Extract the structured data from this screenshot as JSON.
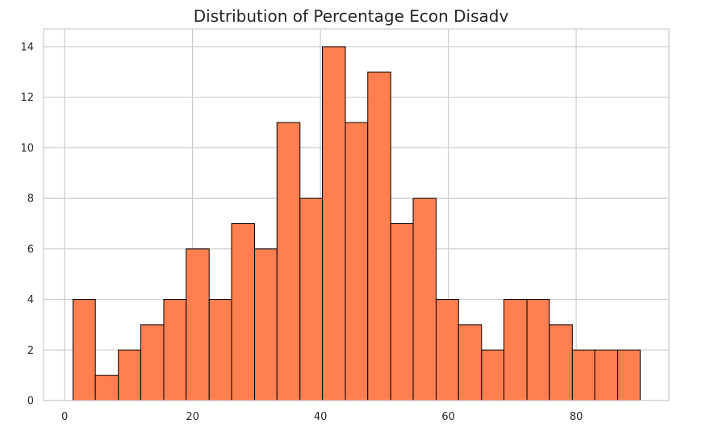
{
  "chart_data": {
    "type": "bar",
    "title": "Distribution of Percentage Econ Disadv",
    "xlabel": "",
    "ylabel": "",
    "xlim": [
      -3.3,
      94.5
    ],
    "ylim": [
      0,
      14.7
    ],
    "grid": true,
    "bar_color": "#ff7f50",
    "edge_color": "#000000",
    "bins": [
      {
        "x0": 1.3,
        "x1": 4.8,
        "count": 4
      },
      {
        "x0": 4.8,
        "x1": 8.4,
        "count": 1
      },
      {
        "x0": 8.4,
        "x1": 11.9,
        "count": 2
      },
      {
        "x0": 11.9,
        "x1": 15.5,
        "count": 3
      },
      {
        "x0": 15.5,
        "x1": 19.0,
        "count": 4
      },
      {
        "x0": 19.0,
        "x1": 22.6,
        "count": 6
      },
      {
        "x0": 22.6,
        "x1": 26.1,
        "count": 4
      },
      {
        "x0": 26.1,
        "x1": 29.7,
        "count": 7
      },
      {
        "x0": 29.7,
        "x1": 33.2,
        "count": 6
      },
      {
        "x0": 33.2,
        "x1": 36.8,
        "count": 11
      },
      {
        "x0": 36.8,
        "x1": 40.3,
        "count": 8
      },
      {
        "x0": 40.3,
        "x1": 43.9,
        "count": 14
      },
      {
        "x0": 43.9,
        "x1": 47.4,
        "count": 11
      },
      {
        "x0": 47.4,
        "x1": 51.0,
        "count": 13
      },
      {
        "x0": 51.0,
        "x1": 54.5,
        "count": 7
      },
      {
        "x0": 54.5,
        "x1": 58.1,
        "count": 8
      },
      {
        "x0": 58.1,
        "x1": 61.6,
        "count": 4
      },
      {
        "x0": 61.6,
        "x1": 65.2,
        "count": 3
      },
      {
        "x0": 65.2,
        "x1": 68.7,
        "count": 2
      },
      {
        "x0": 68.7,
        "x1": 72.3,
        "count": 4
      },
      {
        "x0": 72.3,
        "x1": 75.8,
        "count": 4
      },
      {
        "x0": 75.8,
        "x1": 79.4,
        "count": 3
      },
      {
        "x0": 79.4,
        "x1": 82.9,
        "count": 2
      },
      {
        "x0": 82.9,
        "x1": 86.5,
        "count": 2
      },
      {
        "x0": 86.5,
        "x1": 90.0,
        "count": 2
      }
    ],
    "x_ticks": [
      0,
      20,
      40,
      60,
      80
    ],
    "y_ticks": [
      0,
      2,
      4,
      6,
      8,
      10,
      12,
      14
    ]
  }
}
